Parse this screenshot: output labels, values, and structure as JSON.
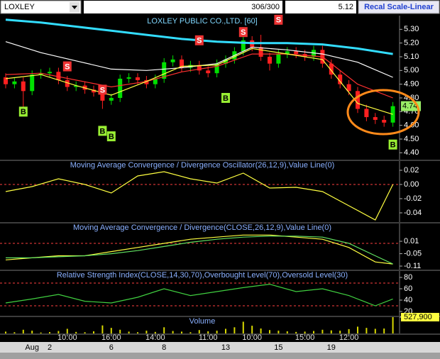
{
  "toolbar": {
    "symbol": "LOXLEY",
    "counter": "306/300",
    "price": "5.12",
    "button": "Recal Scale-Linear"
  },
  "x_axis": {
    "times": [
      {
        "index": 7,
        "label": "10:00"
      },
      {
        "index": 12,
        "label": "16:00"
      },
      {
        "index": 17,
        "label": "14:00"
      },
      {
        "index": 23,
        "label": "11:00"
      },
      {
        "index": 28,
        "label": "10:00"
      },
      {
        "index": 34,
        "label": "15:00"
      },
      {
        "index": 39,
        "label": "12:00"
      }
    ],
    "dates": [
      {
        "index": 3,
        "label": "Aug"
      },
      {
        "index": 5,
        "label": "2"
      },
      {
        "index": 12,
        "label": "6"
      },
      {
        "index": 18,
        "label": "8"
      },
      {
        "index": 25,
        "label": "13"
      },
      {
        "index": 31,
        "label": "15"
      },
      {
        "index": 37,
        "label": "19"
      }
    ]
  },
  "chart_data": [
    {
      "type": "candlestick",
      "title": "LOXLEY PUBLIC CO.,LTD. [60]",
      "ylim": [
        4.35,
        5.4
      ],
      "yticks": [
        {
          "value": 5.3,
          "label": "5.30"
        },
        {
          "value": 5.2,
          "label": "5.20"
        },
        {
          "value": 5.1,
          "label": "5.10"
        },
        {
          "value": 5.0,
          "label": "5.00"
        },
        {
          "value": 4.9,
          "label": "4.90"
        },
        {
          "value": 4.8,
          "label": "4.80"
        },
        {
          "value": 4.7,
          "label": "4.70"
        },
        {
          "value": 4.6,
          "label": "4.60"
        },
        {
          "value": 4.5,
          "label": "4.50"
        },
        {
          "value": 4.4,
          "label": "4.40"
        }
      ],
      "up_color": "#00e000",
      "down_color": "#ff2020",
      "open": [
        4.95,
        4.9,
        4.92,
        4.85,
        4.97,
        4.98,
        4.99,
        4.93,
        4.88,
        4.89,
        4.86,
        4.84,
        4.78,
        4.8,
        4.94,
        4.95,
        4.93,
        4.9,
        4.94,
        5.06,
        5.08,
        5.02,
        5.04,
        5.0,
        4.98,
        5.05,
        5.08,
        5.14,
        5.22,
        5.17,
        5.1,
        5.05,
        5.12,
        5.14,
        5.12,
        5.1,
        5.15,
        5.05,
        4.97,
        4.9,
        4.85,
        4.72,
        4.66,
        4.64,
        4.62
      ],
      "high": [
        4.98,
        4.95,
        4.95,
        5.0,
        5.01,
        5.02,
        5.02,
        4.96,
        4.92,
        4.92,
        4.89,
        4.87,
        4.83,
        4.97,
        4.98,
        4.98,
        4.96,
        4.97,
        5.09,
        5.11,
        5.11,
        5.07,
        5.07,
        5.03,
        5.08,
        5.11,
        5.17,
        5.3,
        5.25,
        5.26,
        5.13,
        5.15,
        5.17,
        5.17,
        5.15,
        5.18,
        5.18,
        5.08,
        5.0,
        4.93,
        4.88,
        4.75,
        4.69,
        4.67,
        4.77
      ],
      "low": [
        4.87,
        4.87,
        4.7,
        4.82,
        4.94,
        4.95,
        4.9,
        4.85,
        4.85,
        4.83,
        4.81,
        4.72,
        4.75,
        4.77,
        4.91,
        4.9,
        4.87,
        4.87,
        4.91,
        5.03,
        4.99,
        4.99,
        4.97,
        4.95,
        4.95,
        5.02,
        5.05,
        5.11,
        5.14,
        5.07,
        5.0,
        5.02,
        5.09,
        5.09,
        5.07,
        5.07,
        5.02,
        4.94,
        4.87,
        4.82,
        4.69,
        4.63,
        4.61,
        4.59,
        4.59
      ],
      "close": [
        4.9,
        4.92,
        4.85,
        4.97,
        4.98,
        4.99,
        4.93,
        4.88,
        4.89,
        4.86,
        4.84,
        4.78,
        4.8,
        4.94,
        4.95,
        4.93,
        4.9,
        4.94,
        5.06,
        5.08,
        5.02,
        5.04,
        5.0,
        4.98,
        5.05,
        5.08,
        5.14,
        5.22,
        5.17,
        5.1,
        5.05,
        5.12,
        5.14,
        5.12,
        5.1,
        5.15,
        5.05,
        4.97,
        4.9,
        4.85,
        4.72,
        4.66,
        4.64,
        4.62,
        4.74
      ],
      "overlays": [
        {
          "color": "#33ddff",
          "x": [
            0,
            4,
            8,
            12,
            16,
            20,
            24,
            28,
            32,
            36,
            40,
            44
          ],
          "values": [
            5.37,
            5.35,
            5.32,
            5.29,
            5.26,
            5.23,
            5.21,
            5.2,
            5.2,
            5.19,
            5.16,
            5.12
          ]
        },
        {
          "color": "#ffffff",
          "x": [
            0,
            4,
            8,
            12,
            16,
            20,
            24,
            28,
            32,
            36,
            40,
            44
          ],
          "values": [
            5.21,
            5.13,
            5.07,
            5.01,
            5.0,
            5.02,
            5.05,
            5.17,
            5.15,
            5.12,
            5.06,
            4.95
          ]
        },
        {
          "color": "#ff3030",
          "x": [
            0,
            4,
            8,
            12,
            16,
            20,
            24,
            28,
            32,
            36,
            40,
            44
          ],
          "values": [
            4.97,
            4.98,
            4.93,
            4.88,
            4.92,
            4.99,
            5.03,
            5.12,
            5.12,
            5.1,
            4.9,
            4.8
          ]
        },
        {
          "color": "#ffff40",
          "x": [
            0,
            4,
            8,
            12,
            16,
            20,
            24,
            28,
            32,
            36,
            40,
            44
          ],
          "values": [
            4.94,
            4.97,
            4.89,
            4.82,
            4.92,
            5.03,
            5.04,
            5.16,
            5.12,
            5.08,
            4.76,
            4.68
          ]
        }
      ],
      "signals": [
        {
          "label": "S",
          "index": 7,
          "value": 5.03,
          "color": "#ee3333"
        },
        {
          "label": "S",
          "index": 11,
          "value": 4.86,
          "color": "#ee3333"
        },
        {
          "label": "S",
          "index": 22,
          "value": 5.22,
          "color": "#ee3333"
        },
        {
          "label": "S",
          "index": 27,
          "value": 5.28,
          "color": "#ee3333"
        },
        {
          "label": "S",
          "index": 31,
          "value": 5.37,
          "color": "#ee3333"
        },
        {
          "label": "B",
          "index": 2,
          "value": 4.7,
          "color": "#99ee33"
        },
        {
          "label": "B",
          "index": 11,
          "value": 4.56,
          "color": "#99ee33"
        },
        {
          "label": "B",
          "index": 12,
          "value": 4.52,
          "color": "#99ee33"
        },
        {
          "label": "B",
          "index": 25,
          "value": 4.8,
          "color": "#99ee33"
        },
        {
          "label": "B",
          "index": 44,
          "value": 4.46,
          "color": "#99ee33"
        }
      ]
    },
    {
      "type": "line",
      "title": "Moving Average Convergence / Divergence Oscillator(26,12,9),Value Line(0)",
      "ylim": [
        -0.053,
        0.033
      ],
      "yticks": [
        0.02,
        {
          "value": 0,
          "label": "0.00"
        },
        -0.02,
        -0.04
      ],
      "levels": [
        {
          "value": 0,
          "color": "#ff4040"
        }
      ],
      "series": [
        {
          "color": "#ffff40",
          "x": [
            0,
            3,
            6,
            9,
            12,
            15,
            18,
            21,
            24,
            27,
            30,
            33,
            36,
            39,
            42,
            44
          ],
          "values": [
            -0.01,
            -0.003,
            0.008,
            0.0,
            -0.012,
            0.012,
            0.018,
            0.008,
            0.002,
            0.016,
            -0.005,
            -0.004,
            -0.01,
            -0.03,
            -0.05,
            0.0
          ]
        }
      ]
    },
    {
      "type": "line",
      "title": "Moving Average Convergence / Divergence(CLOSE,26,12,9),Value Line(0)",
      "ylim": [
        -0.127,
        0.096
      ],
      "yticks": [
        0.01,
        -0.05,
        -0.11
      ],
      "levels": [
        {
          "value": 0,
          "color": "#ff4040"
        }
      ],
      "series": [
        {
          "color": "#ffff40",
          "x": [
            0,
            3,
            6,
            9,
            12,
            15,
            18,
            21,
            24,
            27,
            30,
            33,
            36,
            39,
            42,
            44
          ],
          "values": [
            -0.08,
            -0.07,
            -0.06,
            -0.06,
            -0.04,
            -0.02,
            0.0,
            0.02,
            0.03,
            0.04,
            0.04,
            0.03,
            0.02,
            -0.02,
            -0.09,
            -0.1
          ]
        },
        {
          "color": "#60e060",
          "x": [
            0,
            3,
            6,
            9,
            12,
            15,
            18,
            21,
            24,
            27,
            30,
            33,
            36,
            39,
            42,
            44
          ],
          "values": [
            -0.07,
            -0.07,
            -0.065,
            -0.06,
            -0.05,
            -0.035,
            -0.015,
            0.005,
            0.02,
            0.03,
            0.035,
            0.035,
            0.03,
            0.0,
            -0.06,
            -0.1
          ]
        }
      ]
    },
    {
      "type": "line",
      "title": "Relative Strength Index(CLOSE,14,30,70),Overbought Level(70),Oversold Level(30)",
      "ylim": [
        12.5,
        91.25
      ],
      "yticks": [
        80,
        60,
        40,
        20
      ],
      "levels": [
        {
          "value": 70,
          "color": "#ff4040"
        },
        {
          "value": 30,
          "color": "#ff4040"
        }
      ],
      "series": [
        {
          "color": "#40d040",
          "x": [
            0,
            3,
            6,
            9,
            12,
            15,
            18,
            21,
            24,
            27,
            30,
            33,
            36,
            39,
            42,
            44
          ],
          "values": [
            35,
            42,
            50,
            38,
            35,
            45,
            60,
            48,
            55,
            62,
            68,
            55,
            60,
            48,
            30,
            42
          ]
        }
      ]
    },
    {
      "type": "bar",
      "title": "Volume",
      "ylim": [
        0,
        527900
      ],
      "yticks": [
        {
          "value": 527900,
          "label": "527,900"
        }
      ],
      "color": "#d8d800",
      "values": [
        60000,
        40000,
        120000,
        90000,
        30000,
        45000,
        80000,
        150000,
        50000,
        40000,
        70000,
        260000,
        180000,
        120000,
        60000,
        40000,
        90000,
        50000,
        200000,
        80000,
        60000,
        40000,
        110000,
        70000,
        90000,
        150000,
        200000,
        380000,
        250000,
        160000,
        110000,
        90000,
        70000,
        50000,
        60000,
        80000,
        120000,
        100000,
        90000,
        140000,
        220000,
        180000,
        150000,
        160000,
        527900
      ]
    }
  ]
}
